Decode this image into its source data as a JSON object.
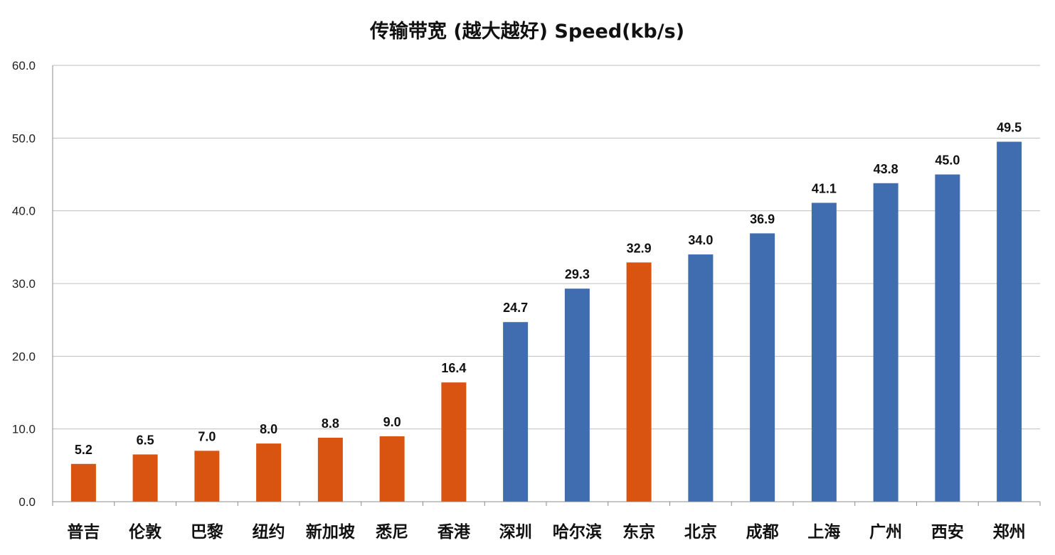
{
  "chart_data": {
    "type": "bar",
    "title": "传输带宽 (越大越好) Speed(kb/s)",
    "xlabel": "",
    "ylabel": "",
    "ylim": [
      0,
      60
    ],
    "y_ticks": [
      "0.0",
      "10.0",
      "20.0",
      "30.0",
      "40.0",
      "50.0",
      "60.0"
    ],
    "grid": true,
    "legend": "none",
    "categories": [
      "普吉",
      "伦敦",
      "巴黎",
      "纽约",
      "新加坡",
      "悉尼",
      "香港",
      "深圳",
      "哈尔滨",
      "东京",
      "北京",
      "成都",
      "上海",
      "广州",
      "西安",
      "郑州"
    ],
    "values": [
      5.2,
      6.5,
      7.0,
      8.0,
      8.8,
      9.0,
      16.4,
      24.7,
      29.3,
      32.9,
      34.0,
      36.9,
      41.1,
      43.8,
      45.0,
      49.5
    ],
    "value_labels": [
      "5.2",
      "6.5",
      "7.0",
      "8.0",
      "8.8",
      "9.0",
      "16.4",
      "24.7",
      "29.3",
      "32.9",
      "34.0",
      "36.9",
      "41.1",
      "43.8",
      "45.0",
      "49.5"
    ],
    "bar_groups": [
      "overseas",
      "overseas",
      "overseas",
      "overseas",
      "overseas",
      "overseas",
      "overseas",
      "domestic",
      "domestic",
      "overseas",
      "domestic",
      "domestic",
      "domestic",
      "domestic",
      "domestic",
      "domestic"
    ],
    "colors": {
      "overseas": "#d95410",
      "domestic": "#3f6db0"
    }
  }
}
